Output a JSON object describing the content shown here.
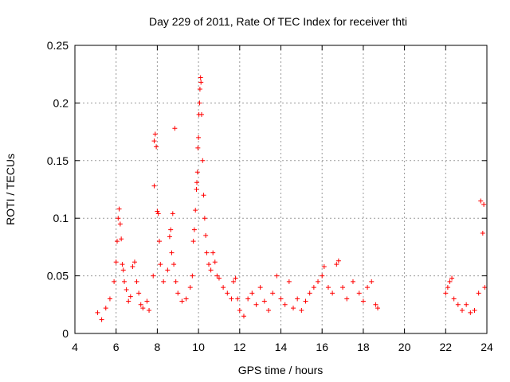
{
  "chart_data": {
    "type": "scatter",
    "title": "Day 229 of 2011, Rate Of TEC Index for receiver thti",
    "xlabel": "GPS time / hours",
    "ylabel": "ROTI / TECUs",
    "xlim": [
      4,
      24
    ],
    "ylim": [
      0,
      0.25
    ],
    "xticks": [
      4,
      6,
      8,
      10,
      12,
      14,
      16,
      18,
      20,
      22,
      24
    ],
    "xtick_labels": [
      "4",
      "6",
      "8",
      "10",
      "12",
      "14",
      "16",
      "18",
      "20",
      "22",
      "24"
    ],
    "yticks": [
      0,
      0.05,
      0.1,
      0.15,
      0.2,
      0.25
    ],
    "ytick_labels": [
      "0",
      "0.05",
      "0.1",
      "0.15",
      "0.2",
      "0.25"
    ],
    "grid": true,
    "marker": "+",
    "marker_color": "#ff0000",
    "series": [
      {
        "name": "ROTI",
        "points": [
          [
            5.1,
            0.018
          ],
          [
            5.3,
            0.012
          ],
          [
            5.5,
            0.022
          ],
          [
            5.7,
            0.03
          ],
          [
            5.9,
            0.045
          ],
          [
            6.0,
            0.062
          ],
          [
            6.05,
            0.08
          ],
          [
            6.1,
            0.1
          ],
          [
            6.15,
            0.108
          ],
          [
            6.2,
            0.095
          ],
          [
            6.25,
            0.082
          ],
          [
            6.3,
            0.06
          ],
          [
            6.35,
            0.055
          ],
          [
            6.4,
            0.045
          ],
          [
            6.5,
            0.038
          ],
          [
            6.6,
            0.028
          ],
          [
            6.7,
            0.032
          ],
          [
            6.8,
            0.058
          ],
          [
            6.9,
            0.062
          ],
          [
            7.0,
            0.045
          ],
          [
            7.1,
            0.035
          ],
          [
            7.2,
            0.025
          ],
          [
            7.3,
            0.022
          ],
          [
            7.5,
            0.028
          ],
          [
            7.6,
            0.02
          ],
          [
            7.8,
            0.05
          ],
          [
            7.85,
            0.167
          ],
          [
            7.9,
            0.173
          ],
          [
            7.95,
            0.162
          ],
          [
            7.85,
            0.128
          ],
          [
            8.0,
            0.106
          ],
          [
            8.05,
            0.104
          ],
          [
            8.1,
            0.08
          ],
          [
            8.15,
            0.06
          ],
          [
            8.3,
            0.045
          ],
          [
            8.5,
            0.055
          ],
          [
            8.6,
            0.084
          ],
          [
            8.65,
            0.09
          ],
          [
            8.7,
            0.07
          ],
          [
            8.75,
            0.104
          ],
          [
            8.8,
            0.06
          ],
          [
            8.85,
            0.178
          ],
          [
            8.9,
            0.045
          ],
          [
            9.0,
            0.035
          ],
          [
            9.2,
            0.028
          ],
          [
            9.4,
            0.03
          ],
          [
            9.6,
            0.04
          ],
          [
            9.7,
            0.05
          ],
          [
            9.75,
            0.08
          ],
          [
            9.8,
            0.09
          ],
          [
            9.85,
            0.107
          ],
          [
            9.9,
            0.125
          ],
          [
            9.92,
            0.131
          ],
          [
            9.95,
            0.14
          ],
          [
            9.97,
            0.161
          ],
          [
            10.0,
            0.17
          ],
          [
            10.02,
            0.19
          ],
          [
            10.05,
            0.2
          ],
          [
            10.07,
            0.212
          ],
          [
            10.1,
            0.222
          ],
          [
            10.12,
            0.218
          ],
          [
            10.15,
            0.19
          ],
          [
            10.2,
            0.15
          ],
          [
            10.25,
            0.12
          ],
          [
            10.3,
            0.1
          ],
          [
            10.35,
            0.085
          ],
          [
            10.4,
            0.07
          ],
          [
            10.5,
            0.06
          ],
          [
            10.6,
            0.055
          ],
          [
            10.7,
            0.07
          ],
          [
            10.8,
            0.062
          ],
          [
            10.9,
            0.05
          ],
          [
            11.0,
            0.048
          ],
          [
            11.2,
            0.04
          ],
          [
            11.4,
            0.035
          ],
          [
            11.6,
            0.03
          ],
          [
            11.7,
            0.045
          ],
          [
            11.8,
            0.048
          ],
          [
            11.9,
            0.03
          ],
          [
            12.0,
            0.02
          ],
          [
            12.2,
            0.015
          ],
          [
            12.4,
            0.03
          ],
          [
            12.6,
            0.035
          ],
          [
            12.8,
            0.025
          ],
          [
            13.0,
            0.04
          ],
          [
            13.2,
            0.028
          ],
          [
            13.4,
            0.02
          ],
          [
            13.6,
            0.035
          ],
          [
            13.8,
            0.05
          ],
          [
            14.0,
            0.03
          ],
          [
            14.2,
            0.025
          ],
          [
            14.4,
            0.045
          ],
          [
            14.6,
            0.022
          ],
          [
            14.8,
            0.03
          ],
          [
            15.0,
            0.02
          ],
          [
            15.2,
            0.028
          ],
          [
            15.4,
            0.035
          ],
          [
            15.6,
            0.04
          ],
          [
            15.8,
            0.045
          ],
          [
            16.0,
            0.05
          ],
          [
            16.1,
            0.058
          ],
          [
            16.3,
            0.04
          ],
          [
            16.5,
            0.035
          ],
          [
            16.7,
            0.06
          ],
          [
            16.8,
            0.063
          ],
          [
            17.0,
            0.04
          ],
          [
            17.2,
            0.03
          ],
          [
            17.5,
            0.045
          ],
          [
            17.8,
            0.035
          ],
          [
            18.0,
            0.028
          ],
          [
            18.2,
            0.04
          ],
          [
            18.4,
            0.045
          ],
          [
            18.6,
            0.025
          ],
          [
            18.7,
            0.022
          ],
          [
            22.0,
            0.035
          ],
          [
            22.1,
            0.04
          ],
          [
            22.2,
            0.045
          ],
          [
            22.3,
            0.048
          ],
          [
            22.4,
            0.03
          ],
          [
            22.6,
            0.025
          ],
          [
            22.8,
            0.02
          ],
          [
            23.0,
            0.025
          ],
          [
            23.2,
            0.018
          ],
          [
            23.4,
            0.02
          ],
          [
            23.6,
            0.035
          ],
          [
            23.7,
            0.115
          ],
          [
            23.8,
            0.087
          ],
          [
            23.85,
            0.112
          ],
          [
            23.9,
            0.04
          ]
        ]
      }
    ]
  }
}
